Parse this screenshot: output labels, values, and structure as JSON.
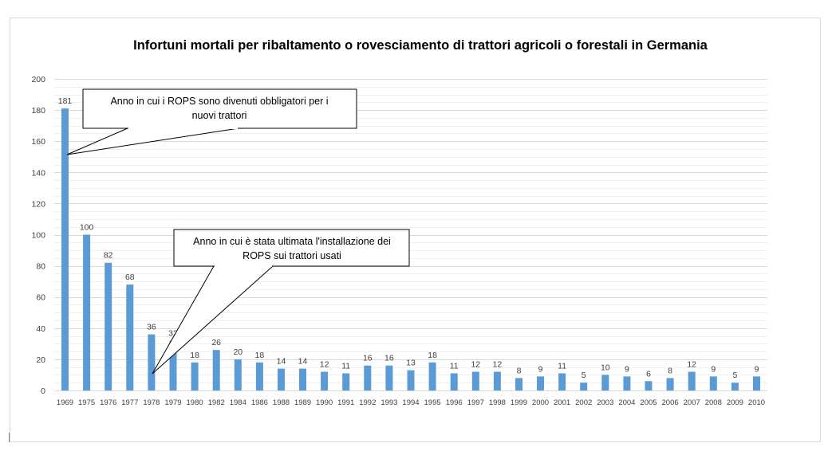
{
  "chart_data": {
    "type": "bar",
    "title": "Infortuni mortali per ribaltamento o rovesciamento di trattori agricoli o forestali in Germania",
    "xlabel": "",
    "ylabel": "",
    "ylim": [
      0,
      200
    ],
    "yticks": [
      0,
      20,
      40,
      60,
      80,
      100,
      120,
      140,
      160,
      180,
      200
    ],
    "grid": true,
    "legend": "none",
    "bar_color": "#5b9bd5",
    "categories": [
      "1969",
      "1975",
      "1976",
      "1977",
      "1978",
      "1979",
      "1980",
      "1982",
      "1984",
      "1986",
      "1988",
      "1989",
      "1990",
      "1991",
      "1992",
      "1993",
      "1994",
      "1995",
      "1996",
      "1997",
      "1998",
      "1999",
      "2000",
      "2001",
      "2002",
      "2003",
      "2004",
      "2005",
      "2006",
      "2007",
      "2008",
      "2009",
      "2010"
    ],
    "values": [
      181,
      100,
      82,
      68,
      36,
      32,
      18,
      26,
      20,
      18,
      14,
      14,
      12,
      11,
      16,
      16,
      13,
      18,
      11,
      12,
      12,
      8,
      9,
      11,
      5,
      10,
      9,
      6,
      8,
      12,
      9,
      5,
      9
    ],
    "annotations": [
      {
        "lines": [
          "Anno in cui i ROPS sono divenuti obbligatori per i",
          "nuovi trattori"
        ],
        "target_category": "1969",
        "target_value": 151
      },
      {
        "lines": [
          "Anno in cui è stata ultimata l'installazione dei",
          "ROPS sui trattori usati"
        ],
        "target_category": "1978",
        "target_value": 10
      }
    ]
  }
}
